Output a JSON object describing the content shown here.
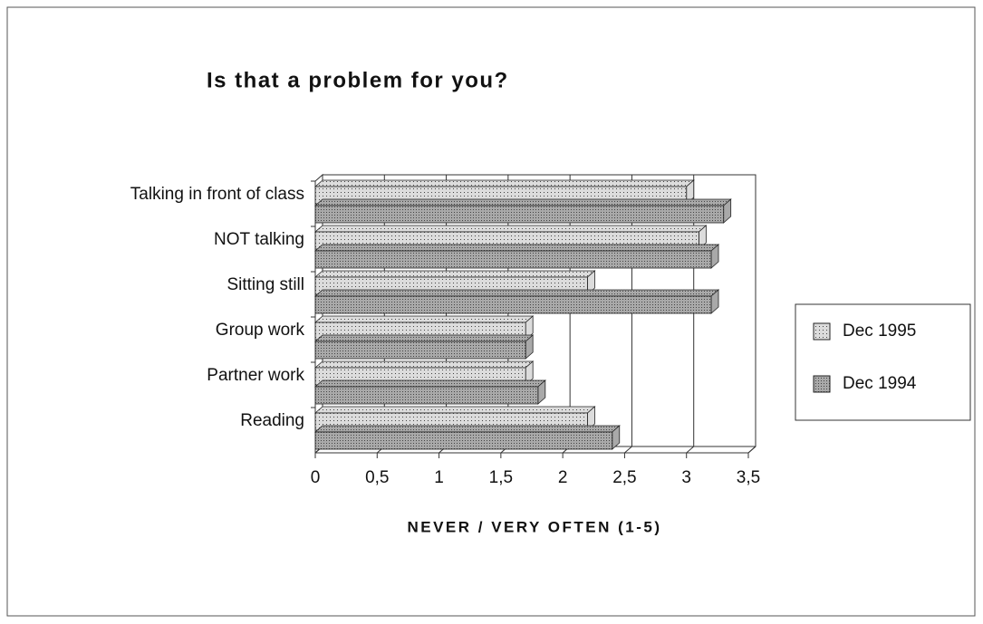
{
  "chart_data": {
    "type": "barh",
    "title": "Is that a problem for you?",
    "xlabel": "NEVER / VERY OFTEN  (1-5)",
    "categories": [
      "Talking in front of class",
      "NOT talking",
      "Sitting still",
      "Group work",
      "Partner work",
      "Reading"
    ],
    "series": [
      {
        "name": "Dec 1995",
        "color": "#dcdcdc",
        "values": [
          3.0,
          3.1,
          2.2,
          1.7,
          1.7,
          2.2
        ]
      },
      {
        "name": "Dec 1994",
        "color": "#a9a9a9",
        "values": [
          3.3,
          3.2,
          3.2,
          1.7,
          1.8,
          2.4
        ]
      }
    ],
    "xlim": [
      0,
      3.5
    ],
    "xticks": [
      0,
      {
        "value": 0.5,
        "label": "0,5"
      },
      1,
      {
        "value": 1.5,
        "label": "1,5"
      },
      2,
      {
        "value": 2.5,
        "label": "2,5"
      },
      3,
      {
        "value": 3.5,
        "label": "3,5"
      }
    ],
    "grid": true,
    "legend": "right"
  }
}
